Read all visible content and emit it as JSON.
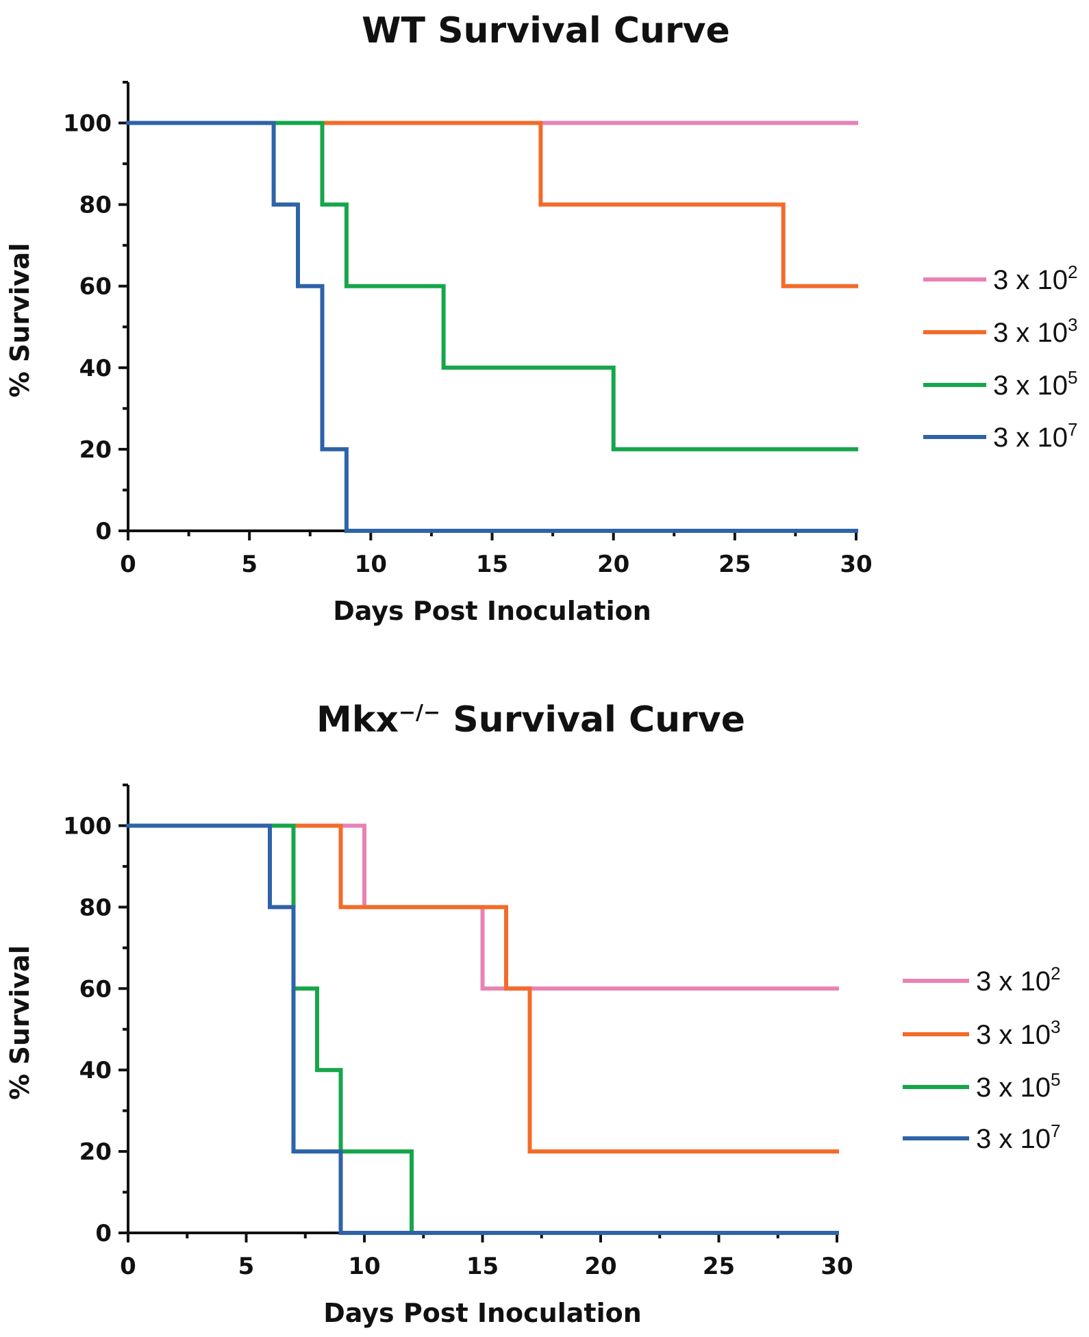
{
  "chart_data": [
    {
      "type": "line",
      "title": "WT Survival Curve",
      "xlabel": "Days Post Inoculation",
      "ylabel": "% Survival",
      "xlim": [
        0,
        30
      ],
      "ylim": [
        0,
        110
      ],
      "xticks": [
        0,
        5,
        10,
        15,
        20,
        25,
        30
      ],
      "yticks": [
        0,
        20,
        40,
        60,
        80,
        100
      ],
      "legend_position": "right",
      "series": [
        {
          "name": "3 x 10",
          "exp": "2",
          "color": "#e882b4",
          "x": [
            0,
            30
          ],
          "y": [
            100,
            100
          ]
        },
        {
          "name": "3 x 10",
          "exp": "3",
          "color": "#f26b2a",
          "x": [
            0,
            17,
            17,
            27,
            27,
            30
          ],
          "y": [
            100,
            100,
            80,
            80,
            60,
            60
          ]
        },
        {
          "name": "3 x 10",
          "exp": "5",
          "color": "#16a64a",
          "x": [
            0,
            8,
            8,
            9,
            9,
            13,
            13,
            20,
            20,
            30
          ],
          "y": [
            100,
            100,
            80,
            80,
            60,
            60,
            40,
            40,
            20,
            20
          ]
        },
        {
          "name": "3 x 10",
          "exp": "7",
          "color": "#2e63a8",
          "x": [
            0,
            6,
            6,
            7,
            7,
            8,
            8,
            9,
            9,
            30
          ],
          "y": [
            100,
            100,
            80,
            80,
            60,
            60,
            20,
            20,
            0,
            0
          ]
        }
      ]
    },
    {
      "type": "line",
      "title": "Mkx",
      "title_sup": "−/−",
      "title_rest": " Survival Curve",
      "xlabel": "Days Post Inoculation",
      "ylabel": "% Survival",
      "xlim": [
        0,
        30
      ],
      "ylim": [
        0,
        110
      ],
      "xticks": [
        0,
        5,
        10,
        15,
        20,
        25,
        30
      ],
      "yticks": [
        0,
        20,
        40,
        60,
        80,
        100
      ],
      "legend_position": "right",
      "series": [
        {
          "name": "3 x 10",
          "exp": "2",
          "color": "#e882b4",
          "x": [
            0,
            10,
            10,
            15,
            15,
            30
          ],
          "y": [
            100,
            100,
            80,
            80,
            60,
            60
          ]
        },
        {
          "name": "3 x 10",
          "exp": "3",
          "color": "#f26b2a",
          "x": [
            0,
            9,
            9,
            16,
            16,
            17,
            17,
            30
          ],
          "y": [
            100,
            100,
            80,
            80,
            60,
            60,
            20,
            20
          ]
        },
        {
          "name": "3 x 10",
          "exp": "5",
          "color": "#16a64a",
          "x": [
            0,
            7,
            7,
            8,
            8,
            9,
            9,
            12,
            12,
            30
          ],
          "y": [
            100,
            100,
            60,
            60,
            40,
            40,
            20,
            20,
            0,
            0
          ]
        },
        {
          "name": "3 x 10",
          "exp": "7",
          "color": "#2e63a8",
          "x": [
            0,
            6,
            6,
            7,
            7,
            9,
            9,
            30
          ],
          "y": [
            100,
            100,
            80,
            80,
            20,
            20,
            0,
            0
          ]
        }
      ]
    }
  ]
}
